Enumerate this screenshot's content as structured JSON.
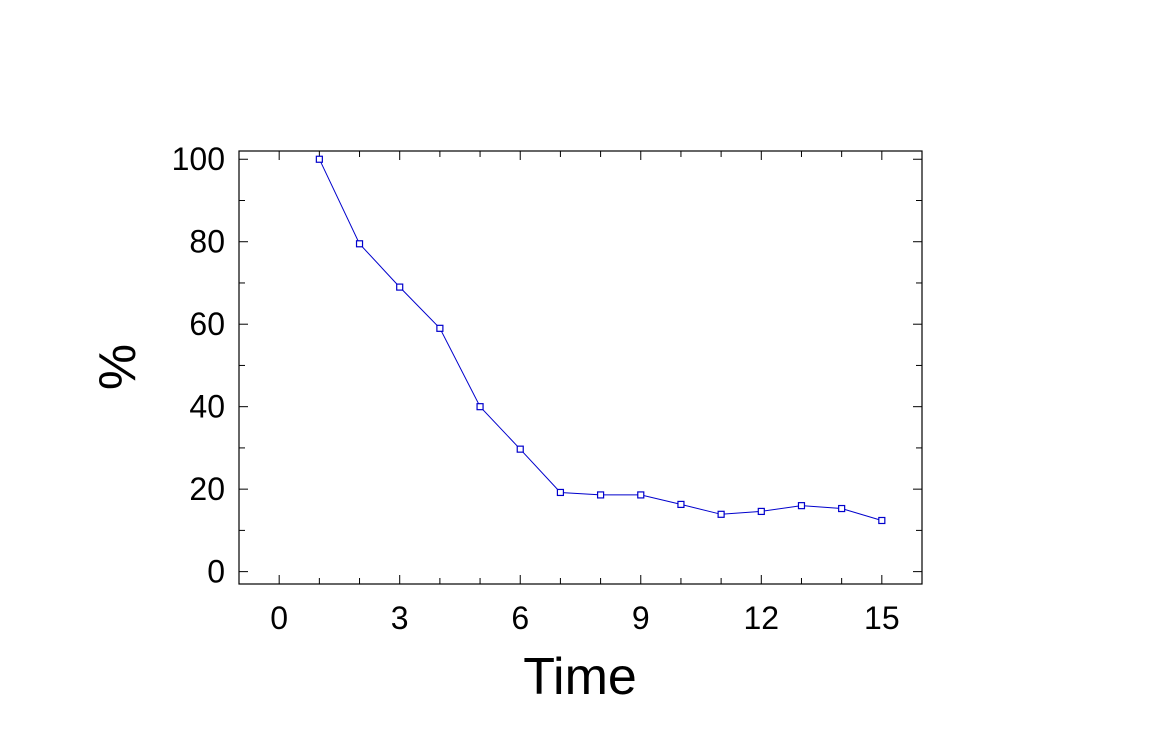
{
  "chart_data": {
    "type": "line",
    "title": "",
    "xlabel": "Time",
    "ylabel": "%",
    "xlim": [
      -1,
      16
    ],
    "ylim": [
      -3,
      102
    ],
    "xticks": [
      0,
      3,
      6,
      9,
      12,
      15
    ],
    "xticks_minor": [
      1,
      2,
      4,
      5,
      7,
      8,
      10,
      11,
      13,
      14
    ],
    "yticks": [
      0,
      20,
      40,
      60,
      80,
      100
    ],
    "yticks_minor": [
      10,
      30,
      50,
      70,
      90
    ],
    "grid": false,
    "legend": "none",
    "series": [
      {
        "color": "#0000cc",
        "marker": "square",
        "x": [
          1,
          2,
          3,
          4,
          5,
          6,
          7,
          8,
          9,
          10,
          11,
          12,
          13,
          14,
          15
        ],
        "y": [
          100,
          79.5,
          69,
          59,
          40,
          29.7,
          19.2,
          18.6,
          18.6,
          16.3,
          13.9,
          14.6,
          16,
          15.3,
          12.4
        ]
      }
    ]
  }
}
